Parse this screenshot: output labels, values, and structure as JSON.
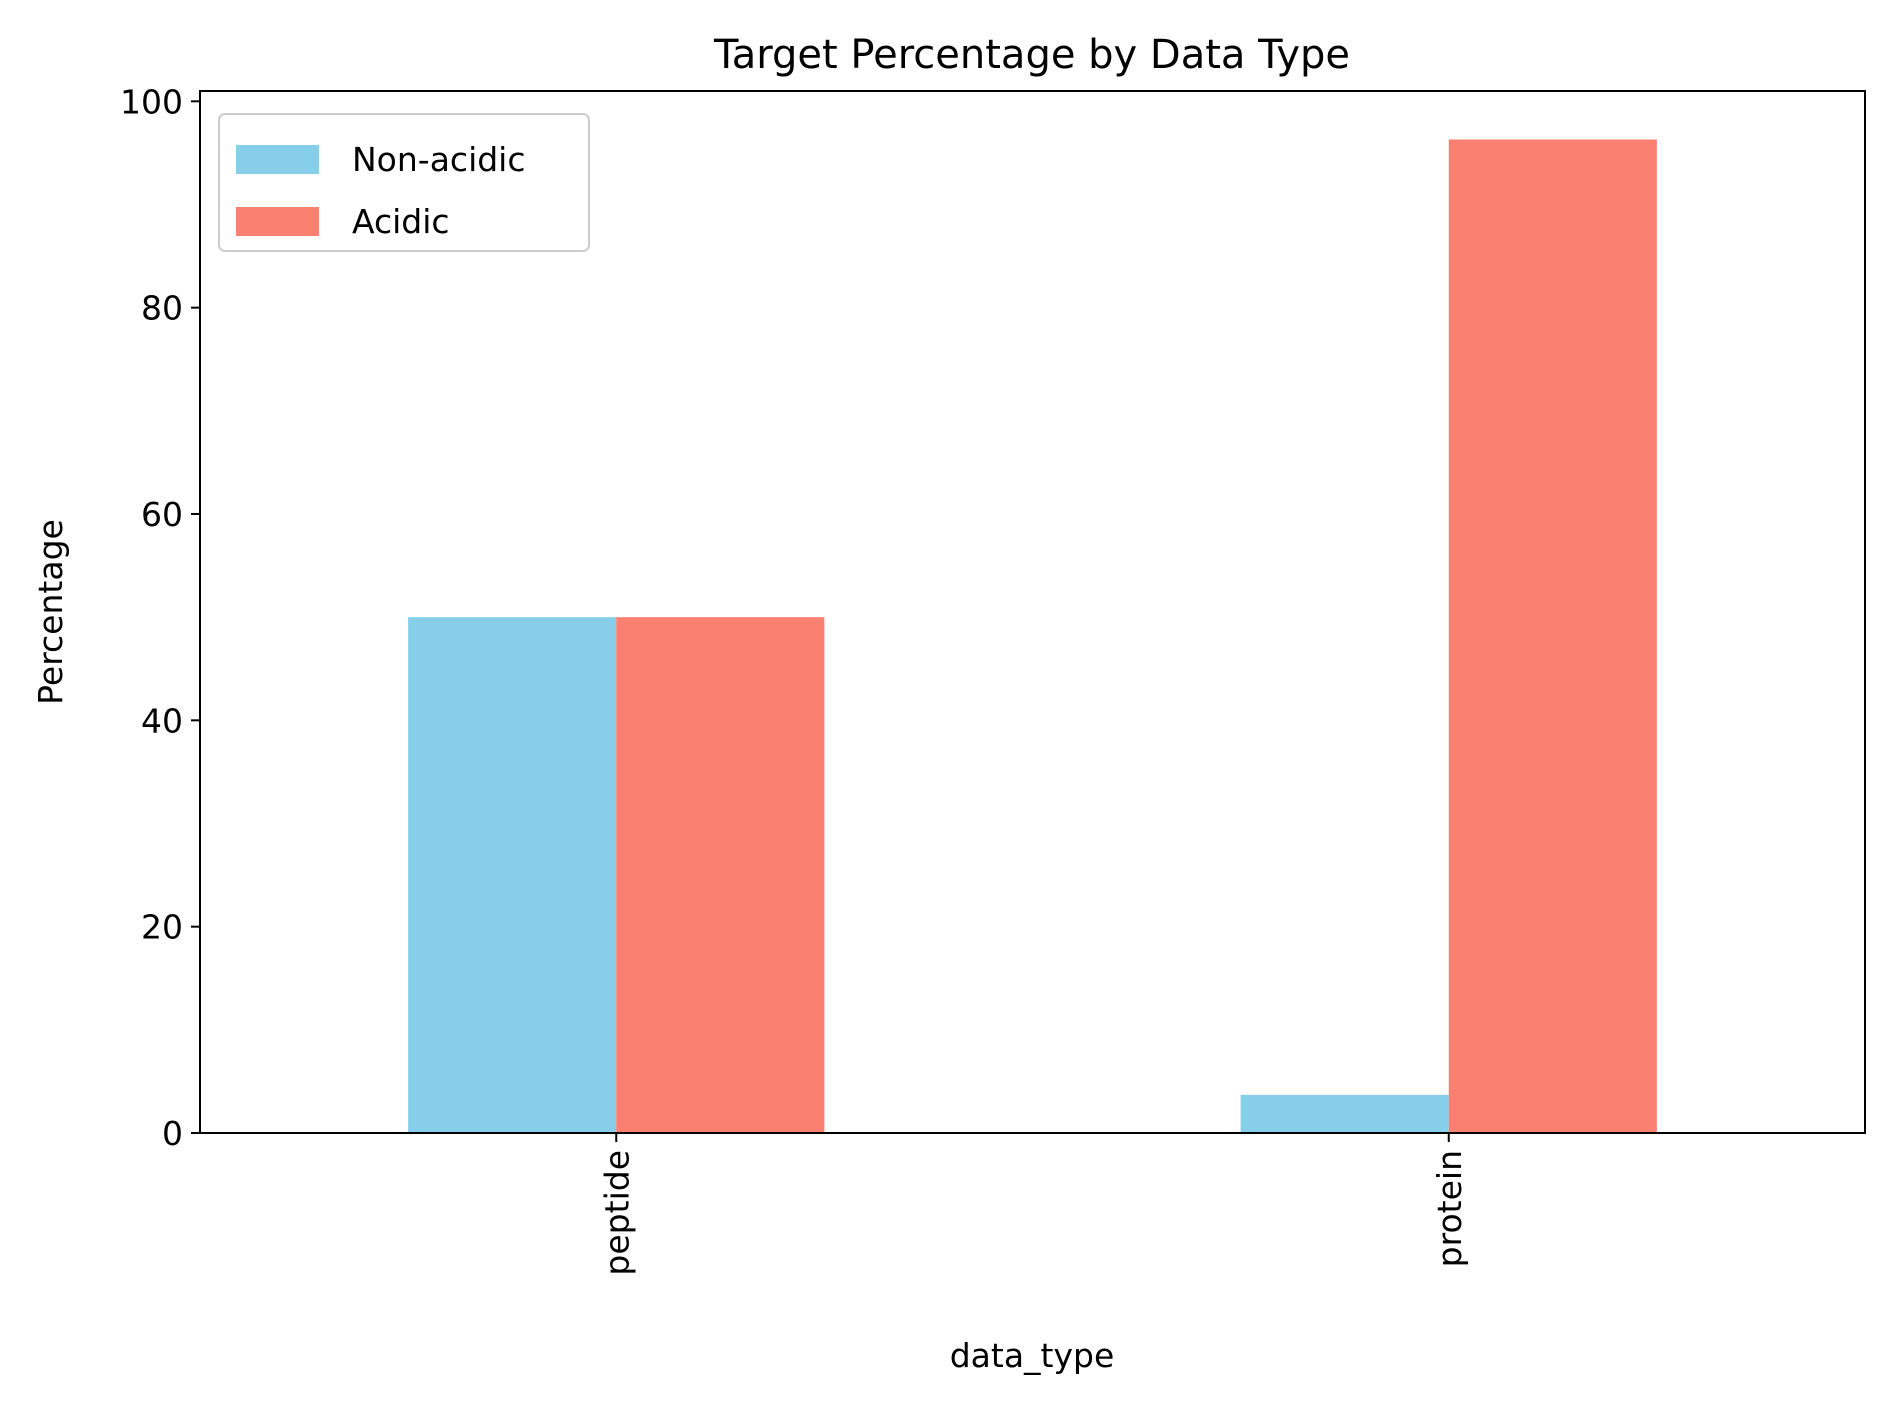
{
  "chart_data": {
    "type": "bar",
    "title": "Target Percentage by Data Type",
    "xlabel": "data_type",
    "ylabel": "Percentage",
    "categories": [
      "peptide",
      "protein"
    ],
    "series": [
      {
        "name": "Non-acidic",
        "color": "#87CEEB",
        "values": [
          50.0,
          3.7
        ]
      },
      {
        "name": "Acidic",
        "color": "#FA8072",
        "values": [
          50.0,
          96.3
        ]
      }
    ],
    "ylim": [
      0,
      101
    ],
    "yticks": [
      0,
      20,
      40,
      60,
      80,
      100
    ],
    "grid": false,
    "legend_position": "top-left",
    "xtick_rotation": "vertical"
  }
}
